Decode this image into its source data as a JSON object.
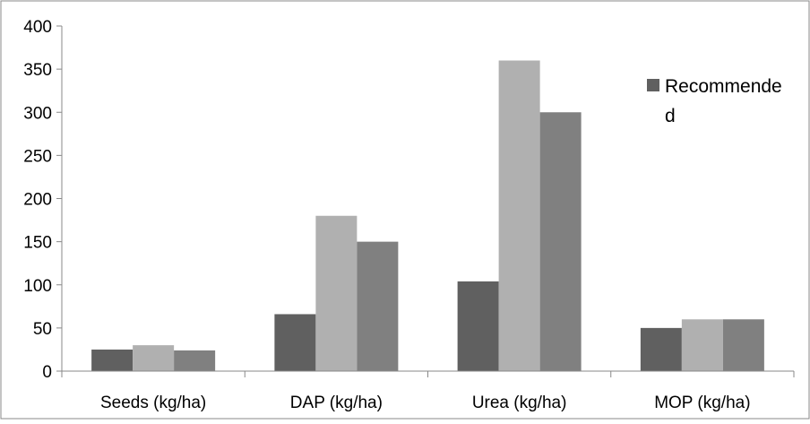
{
  "chart_data": {
    "type": "bar",
    "categories": [
      "Seeds (kg/ha)",
      "DAP (kg/ha)",
      "Urea (kg/ha)",
      "MOP (kg/ha)"
    ],
    "series": [
      {
        "name": "Recommended",
        "color": "#606060",
        "values": [
          25,
          66,
          104,
          50
        ]
      },
      {
        "color": "#b0b0b0",
        "values": [
          30,
          180,
          360,
          60
        ]
      },
      {
        "color": "#808080",
        "values": [
          24,
          150,
          300,
          60
        ]
      }
    ],
    "yticks": [
      0,
      50,
      100,
      150,
      200,
      250,
      300,
      350,
      400
    ],
    "ylim": [
      0,
      400
    ],
    "grid": false,
    "legend": {
      "position": "right",
      "lines": [
        "Recommende",
        "d"
      ],
      "color": "#606060"
    }
  }
}
